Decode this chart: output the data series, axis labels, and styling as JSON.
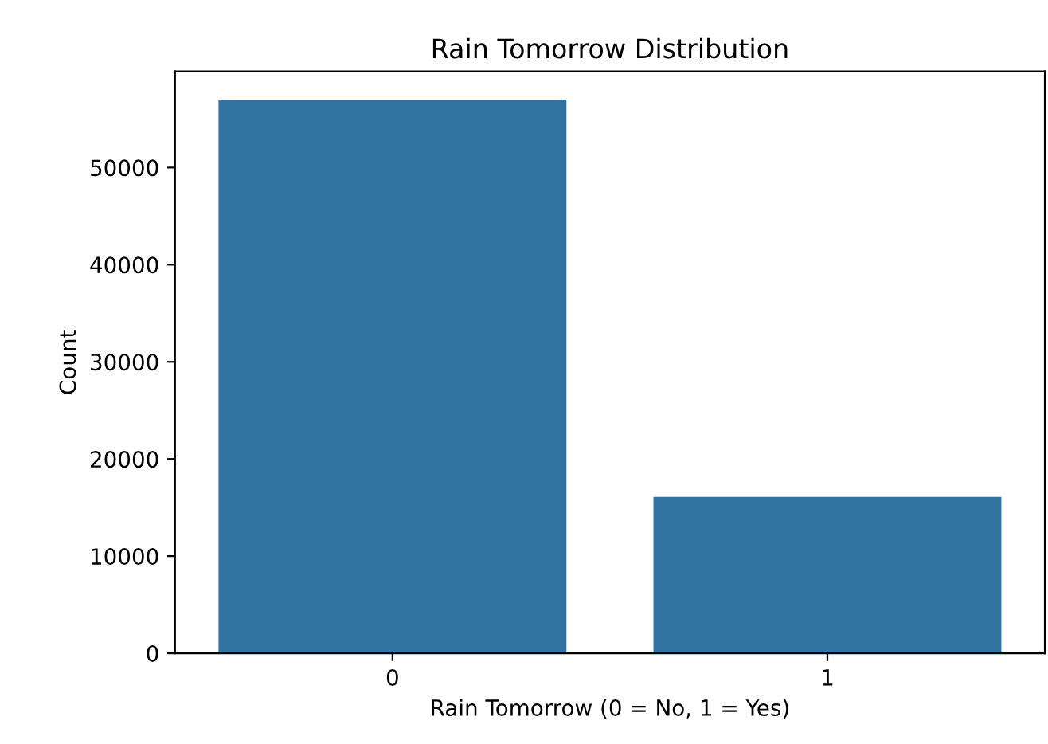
{
  "chart_data": {
    "type": "bar",
    "title": "Rain Tomorrow Distribution",
    "xlabel": "Rain Tomorrow (0 = No, 1 = Yes)",
    "ylabel": "Count",
    "categories": [
      "0",
      "1"
    ],
    "values": [
      57000,
      16100
    ],
    "color": "#3274a1",
    "ylim": [
      0,
      59900
    ],
    "yticks": [
      0,
      10000,
      20000,
      30000,
      40000,
      50000
    ],
    "grid": false,
    "legend": false
  }
}
